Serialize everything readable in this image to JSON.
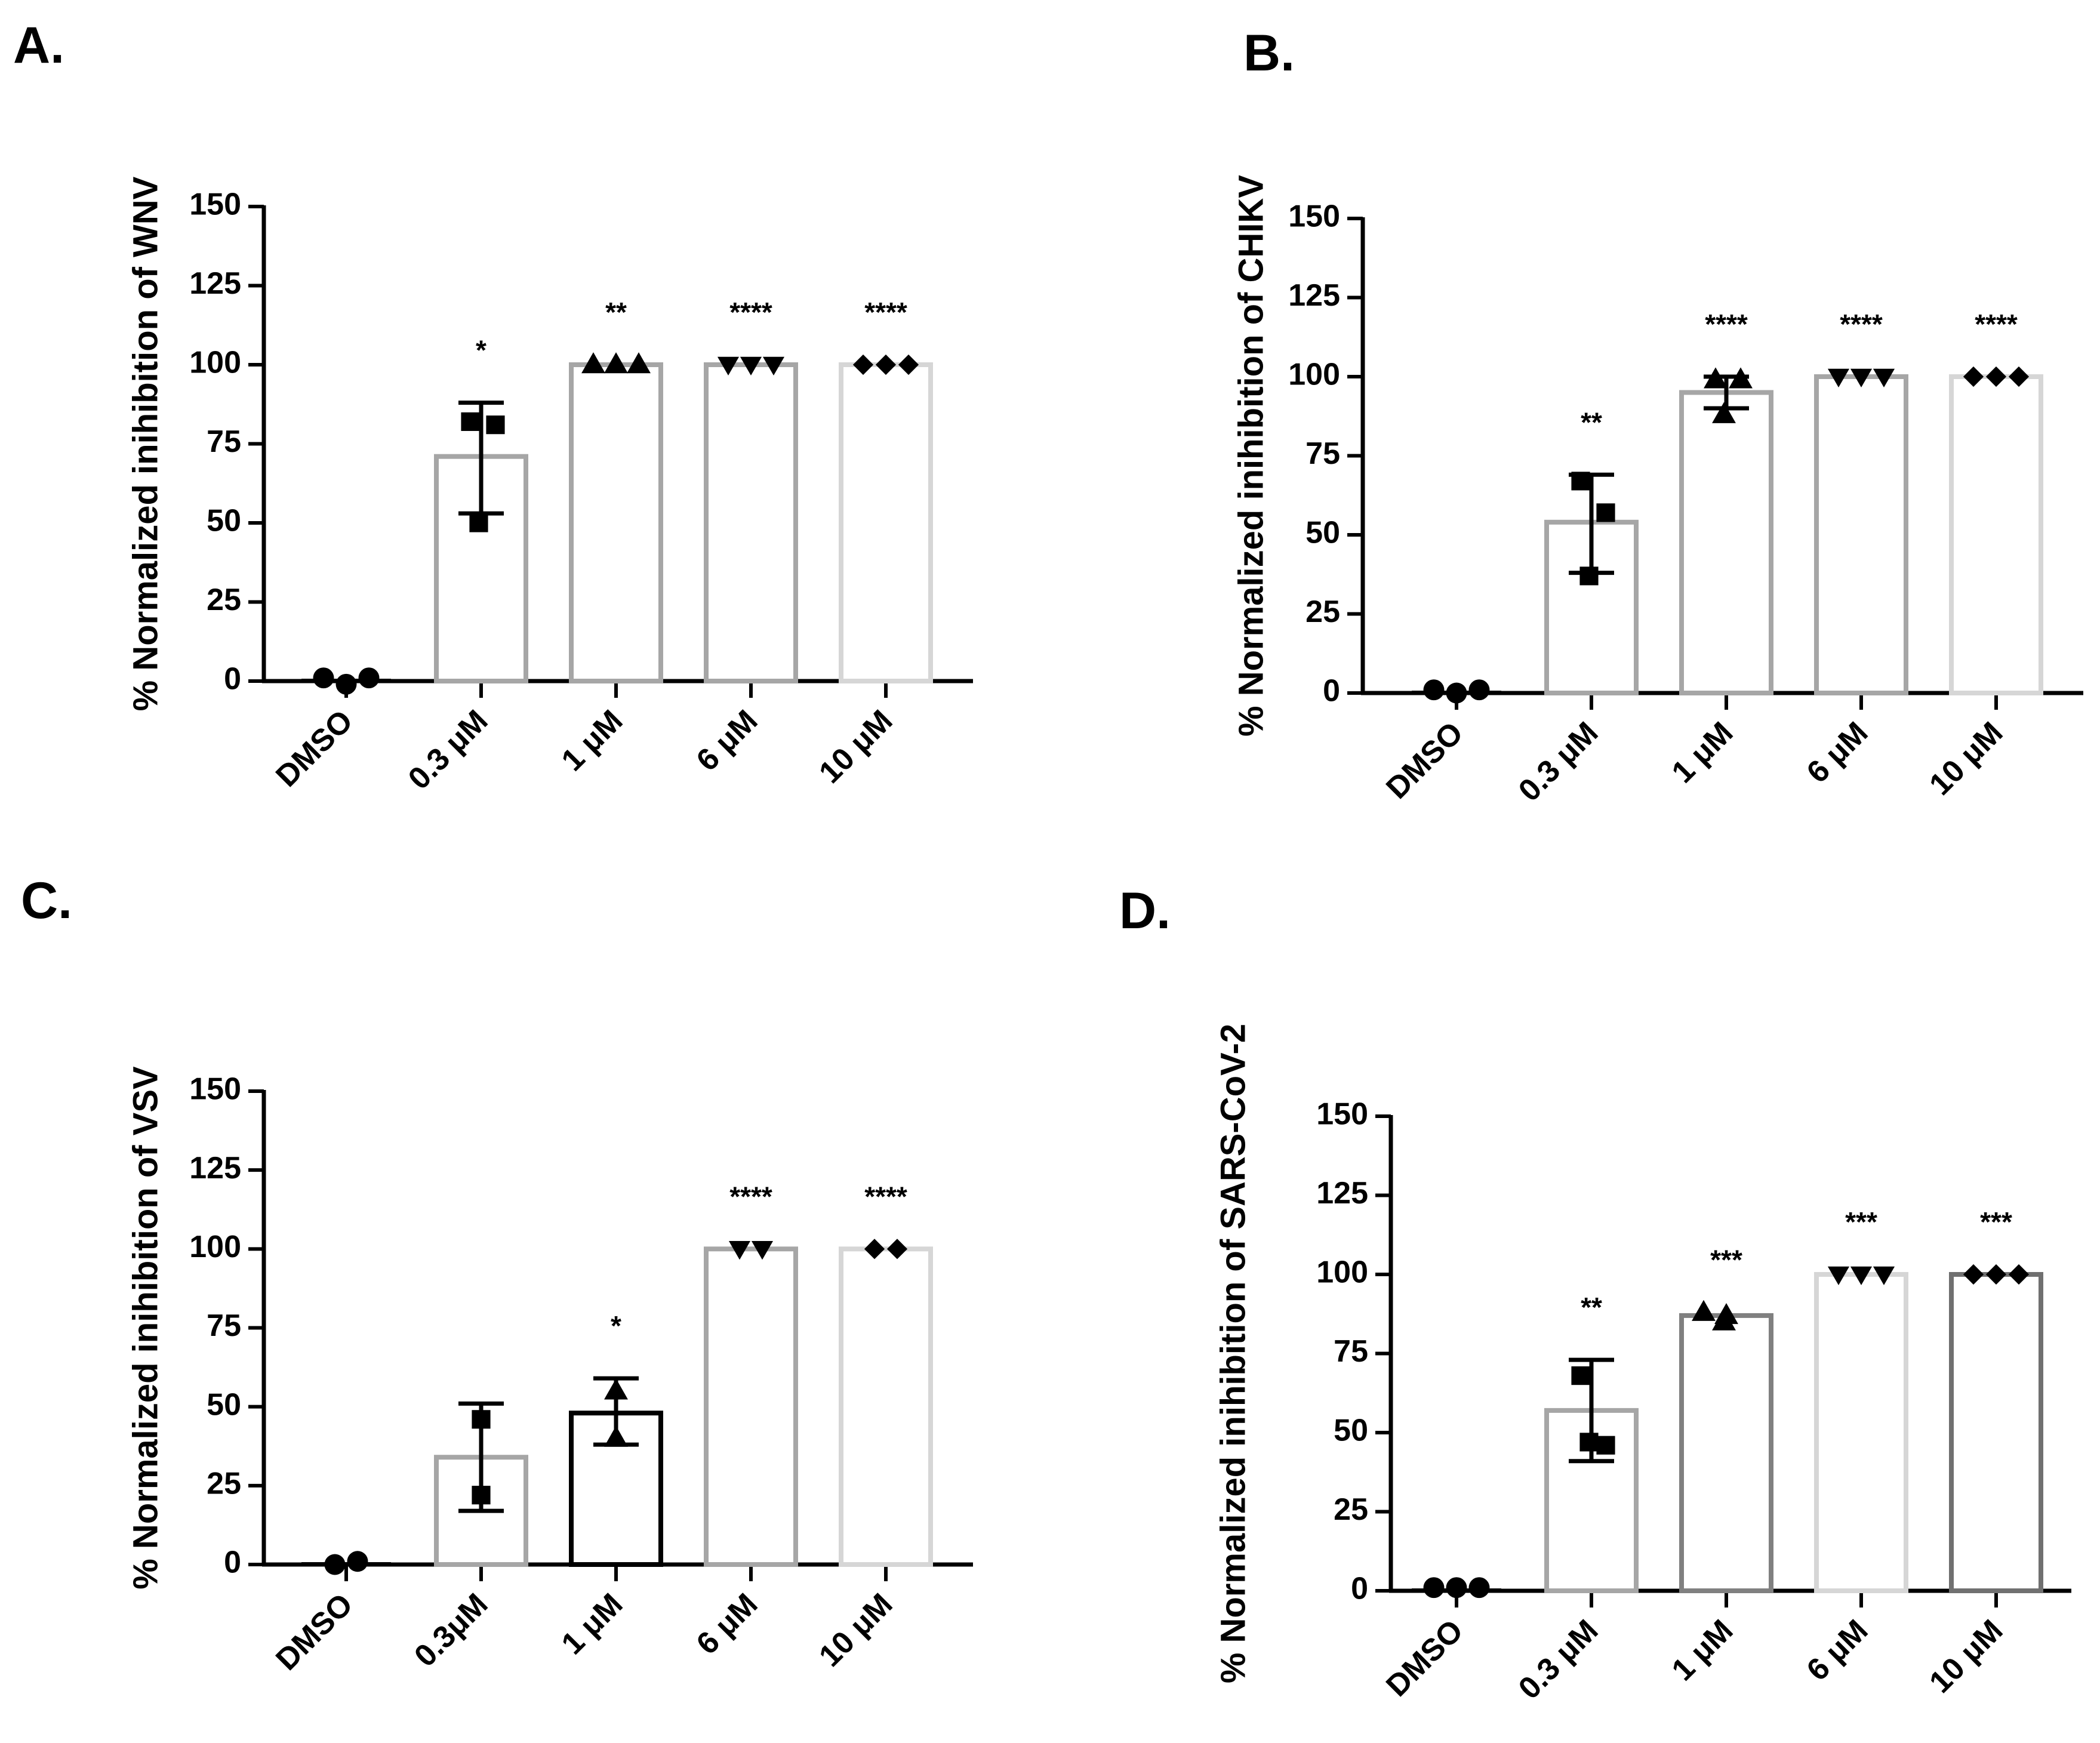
{
  "figure": {
    "panels": [
      "A.",
      "B.",
      "C.",
      "D."
    ]
  },
  "chart_data": [
    {
      "panel": "A.",
      "type": "bar",
      "title": "",
      "xlabel": "",
      "ylabel": "% Normalized inihibition of WNV",
      "ylim": [
        0,
        150
      ],
      "yticks": [
        0,
        25,
        50,
        75,
        100,
        125,
        150
      ],
      "categories": [
        "DMSO",
        "0.3  μM",
        "1 μM",
        "6 μM",
        "10  μM"
      ],
      "values": [
        0,
        71,
        100,
        100,
        100
      ],
      "error": [
        null,
        [
          53,
          88
        ],
        null,
        null,
        null
      ],
      "points": [
        [
          1,
          -1,
          1
        ],
        [
          82,
          81,
          50
        ],
        [
          100,
          100,
          100
        ],
        [
          100,
          100,
          100
        ],
        [
          100,
          100,
          100
        ]
      ],
      "markers": [
        "circle",
        "square",
        "triangle",
        "triangle-down",
        "diamond"
      ],
      "bar_colors": [
        "#000000",
        "#a6a6a6",
        "#a6a6a6",
        "#a6a6a6",
        "#d6d6d6"
      ],
      "significance": [
        "",
        "*",
        "**",
        "****",
        "****"
      ]
    },
    {
      "panel": "B.",
      "type": "bar",
      "title": "",
      "xlabel": "",
      "ylabel": "% Normalized inihibition of CHIKV",
      "ylim": [
        0,
        150
      ],
      "yticks": [
        0,
        25,
        50,
        75,
        100,
        125,
        150
      ],
      "categories": [
        "DMSO",
        "0.3  μM",
        "1 μM",
        "6 μM",
        "10 μM"
      ],
      "values": [
        0,
        54,
        95,
        100,
        100
      ],
      "error": [
        null,
        [
          38,
          69
        ],
        [
          90,
          100
        ],
        null,
        null
      ],
      "points": [
        [
          1,
          0,
          1
        ],
        [
          67,
          57,
          37
        ],
        [
          99,
          99,
          88
        ],
        [
          100,
          100,
          100
        ],
        [
          100,
          100,
          100
        ]
      ],
      "markers": [
        "circle",
        "square",
        "triangle",
        "triangle-down",
        "diamond"
      ],
      "bar_colors": [
        "#000000",
        "#a6a6a6",
        "#a6a6a6",
        "#a6a6a6",
        "#d6d6d6"
      ],
      "significance": [
        "",
        "**",
        "****",
        "****",
        "****"
      ]
    },
    {
      "panel": "C.",
      "type": "bar",
      "title": "",
      "xlabel": "",
      "ylabel": "% Normalized inihibition of VSV",
      "ylim": [
        0,
        150
      ],
      "yticks": [
        0,
        25,
        50,
        75,
        100,
        125,
        150
      ],
      "categories": [
        "DMSO",
        "0.3μM",
        "1 μM",
        "6 μM",
        "10 μM"
      ],
      "values": [
        0,
        34,
        48,
        100,
        100
      ],
      "error": [
        null,
        [
          17,
          51
        ],
        [
          38,
          59
        ],
        null,
        null
      ],
      "points": [
        [
          0,
          1
        ],
        [
          46,
          22
        ],
        [
          55,
          40
        ],
        [
          100,
          100
        ],
        [
          100,
          100
        ]
      ],
      "markers": [
        "circle",
        "square",
        "triangle",
        "triangle-down",
        "diamond"
      ],
      "bar_colors": [
        "#000000",
        "#a6a6a6",
        "#000000",
        "#a6a6a6",
        "#d6d6d6"
      ],
      "significance": [
        "",
        "",
        "*",
        "****",
        "****"
      ]
    },
    {
      "panel": "D.",
      "type": "bar",
      "title": "",
      "xlabel": "",
      "ylabel": "% Normalized inihibition  of SARS-CoV-2",
      "ylim": [
        0,
        150
      ],
      "yticks": [
        0,
        25,
        50,
        75,
        100,
        125,
        150
      ],
      "categories": [
        "DMSO",
        "0.3 μM",
        "1 μM",
        "6 μM",
        "10 μM"
      ],
      "values": [
        0,
        57,
        87,
        100,
        100
      ],
      "error": [
        null,
        [
          41,
          73
        ],
        null,
        null,
        null
      ],
      "points": [
        [
          1,
          1,
          1
        ],
        [
          68,
          46,
          47
        ],
        [
          88,
          87,
          85
        ],
        [
          100,
          100,
          100
        ],
        [
          100,
          100,
          100
        ]
      ],
      "markers": [
        "circle",
        "square",
        "triangle",
        "triangle-down",
        "diamond"
      ],
      "bar_colors": [
        "#000000",
        "#a6a6a6",
        "#808080",
        "#d6d6d6",
        "#707070"
      ],
      "significance": [
        "",
        "**",
        "***",
        "***",
        "***"
      ]
    }
  ]
}
